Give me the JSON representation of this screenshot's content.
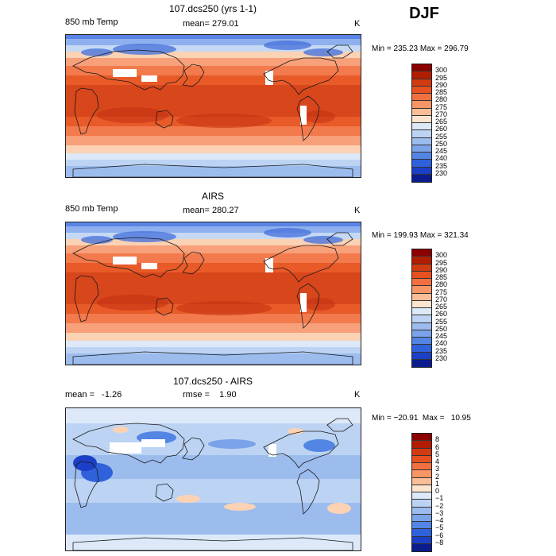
{
  "season": "DJF",
  "panels": [
    {
      "title": "107.dcs250 (yrs 1-1)",
      "left_label": "850 mb Temp",
      "center_label": "mean= 279.01",
      "unit": "K",
      "minmax": "Min = 235.23 Max = 296.79",
      "colorbar": {
        "ticks": [
          "300",
          "295",
          "290",
          "285",
          "280",
          "275",
          "270",
          "265",
          "260",
          "255",
          "250",
          "245",
          "240",
          "235",
          "230"
        ],
        "colors": [
          "#8b0000",
          "#b21d00",
          "#d23a10",
          "#e8501f",
          "#f27040",
          "#f79565",
          "#fbbd98",
          "#fde4cf",
          "#dde9f8",
          "#bcd3f3",
          "#9cbcee",
          "#7aa3ea",
          "#5285e4",
          "#2f61da",
          "#1b3fc6",
          "#0b1c8e"
        ]
      }
    },
    {
      "title": "AIRS",
      "left_label": "850 mb Temp",
      "center_label": "mean= 280.27",
      "unit": "K",
      "minmax": "Min = 199.93 Max = 321.34",
      "colorbar": {
        "ticks": [
          "300",
          "295",
          "290",
          "285",
          "280",
          "275",
          "270",
          "265",
          "260",
          "255",
          "250",
          "245",
          "240",
          "235",
          "230"
        ],
        "colors": [
          "#8b0000",
          "#b21d00",
          "#d23a10",
          "#e8501f",
          "#f27040",
          "#f79565",
          "#fbbd98",
          "#fde4cf",
          "#dde9f8",
          "#bcd3f3",
          "#9cbcee",
          "#7aa3ea",
          "#5285e4",
          "#2f61da",
          "#1b3fc6",
          "#0b1c8e"
        ]
      }
    },
    {
      "title": "107.dcs250 - AIRS",
      "left_label": "mean =   -1.26",
      "center_label": "rmse =    1.90",
      "unit": "K",
      "minmax": "Min = −20.91  Max =   10.95",
      "colorbar": {
        "ticks": [
          "8",
          "6",
          "5",
          "4",
          "3",
          "2",
          "1",
          "0",
          "−1",
          "−2",
          "−3",
          "−4",
          "−5",
          "−6",
          "−8"
        ],
        "colors": [
          "#8b0000",
          "#b21d00",
          "#d23a10",
          "#e8501f",
          "#f27040",
          "#f79565",
          "#fbbd98",
          "#fde4cf",
          "#dde9f8",
          "#bcd3f3",
          "#9cbcee",
          "#7aa3ea",
          "#5285e4",
          "#2f61da",
          "#1b3fc6",
          "#0b1c8e"
        ]
      }
    }
  ]
}
